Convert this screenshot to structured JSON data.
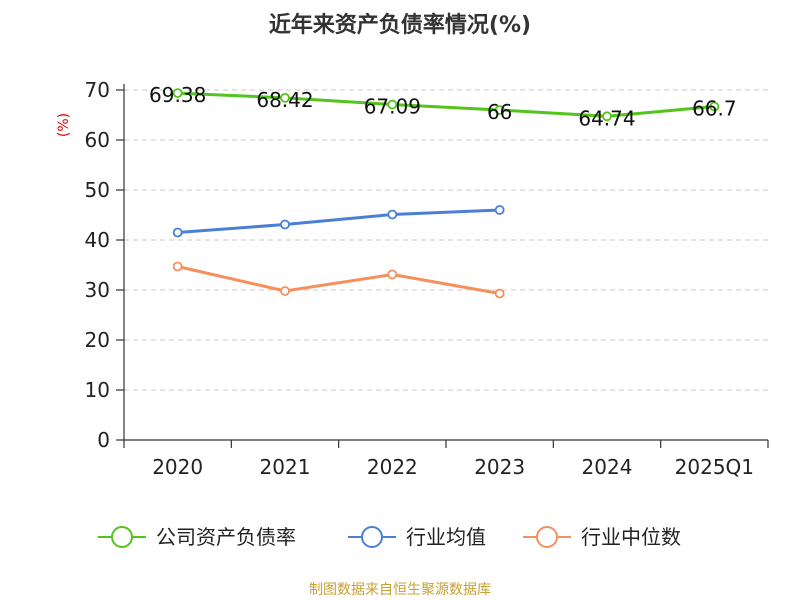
{
  "chart_data": {
    "type": "line",
    "title": "近年来资产负债率情况(%)",
    "ylabel": "(%)",
    "xlabel": "",
    "categories": [
      "2020",
      "2021",
      "2022",
      "2023",
      "2024",
      "2025Q1"
    ],
    "yticks": [
      "0",
      "10",
      "20",
      "30",
      "40",
      "50",
      "60",
      "70"
    ],
    "ylim": [
      0,
      70
    ],
    "grid": true,
    "legend_position": "bottom",
    "series": [
      {
        "name": "公司资产负债率",
        "color": "#52c41a",
        "values": [
          69.38,
          68.42,
          67.09,
          66,
          64.74,
          66.7
        ],
        "labels": [
          "69.38",
          "68.42",
          "67.09",
          "66",
          "64.74",
          "66.7"
        ]
      },
      {
        "name": "行业均值",
        "color": "#4a7fd6",
        "values": [
          41.5,
          43.1,
          45.1,
          46.0,
          null,
          null
        ]
      },
      {
        "name": "行业中位数",
        "color": "#f5905e",
        "values": [
          34.7,
          29.8,
          33.1,
          29.3,
          null,
          null
        ]
      }
    ]
  },
  "source_text": "制图数据来自恒生聚源数据库"
}
